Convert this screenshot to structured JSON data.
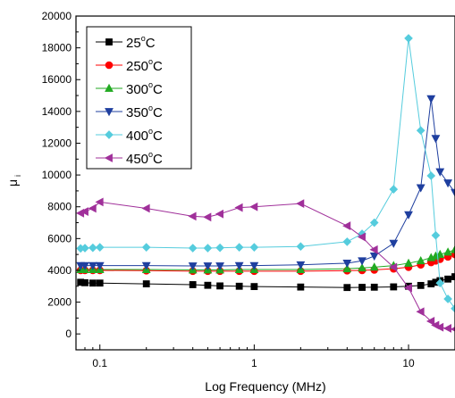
{
  "chart_data": {
    "type": "line",
    "title": "",
    "xlabel": "Log Frequency (MHz)",
    "ylabel_main": "μ",
    "ylabel_sub": "i",
    "x_scale": "log",
    "xlim": [
      0.07,
      20
    ],
    "ylim": [
      -1000,
      20000
    ],
    "x_ticks": [
      {
        "value": 0.1,
        "label": "0.1"
      },
      {
        "value": 1,
        "label": "1"
      },
      {
        "value": 10,
        "label": "10"
      }
    ],
    "y_ticks": [
      {
        "value": 0,
        "label": "0"
      },
      {
        "value": 2000,
        "label": "2000"
      },
      {
        "value": 4000,
        "label": "4000"
      },
      {
        "value": 6000,
        "label": "6000"
      },
      {
        "value": 8000,
        "label": "8000"
      },
      {
        "value": 10000,
        "label": "10000"
      },
      {
        "value": 12000,
        "label": "12000"
      },
      {
        "value": 14000,
        "label": "14000"
      },
      {
        "value": 16000,
        "label": "16000"
      },
      {
        "value": 18000,
        "label": "18000"
      },
      {
        "value": 20000,
        "label": "20000"
      }
    ],
    "grid": false,
    "legend": {
      "position": "top-left"
    },
    "series": [
      {
        "name": "25°C",
        "label_num": "25",
        "label_deg": "o",
        "label_unit": "C",
        "color": "#000000",
        "marker": "square",
        "x": [
          0.075,
          0.08,
          0.09,
          0.1,
          0.2,
          0.4,
          0.5,
          0.6,
          0.8,
          1,
          2,
          4,
          5,
          6,
          8,
          10,
          12,
          14,
          15,
          16,
          18,
          20
        ],
        "y": [
          3250,
          3220,
          3200,
          3200,
          3150,
          3100,
          3060,
          3020,
          3000,
          2980,
          2950,
          2920,
          2930,
          2940,
          2960,
          3000,
          3050,
          3150,
          3250,
          3350,
          3450,
          3600
        ]
      },
      {
        "name": "250°C",
        "label_num": "250",
        "label_deg": "o",
        "label_unit": "C",
        "color": "#ff0000",
        "marker": "circle",
        "x": [
          0.075,
          0.08,
          0.09,
          0.1,
          0.2,
          0.4,
          0.5,
          0.6,
          0.8,
          1,
          2,
          4,
          5,
          6,
          8,
          10,
          12,
          14,
          15,
          16,
          18,
          20
        ],
        "y": [
          4000,
          4000,
          4000,
          4000,
          3980,
          3950,
          3950,
          3950,
          3950,
          3950,
          3950,
          3980,
          4000,
          4030,
          4100,
          4200,
          4350,
          4500,
          4600,
          4700,
          4850,
          5000
        ]
      },
      {
        "name": "300°C",
        "label_num": "300",
        "label_deg": "o",
        "label_unit": "C",
        "color": "#22aa22",
        "marker": "triangle-up",
        "x": [
          0.075,
          0.08,
          0.09,
          0.1,
          0.2,
          0.4,
          0.5,
          0.6,
          0.8,
          1,
          2,
          4,
          5,
          6,
          8,
          10,
          12,
          14,
          15,
          16,
          18,
          20
        ],
        "y": [
          4050,
          4050,
          4050,
          4050,
          4050,
          4030,
          4030,
          4030,
          4050,
          4050,
          4050,
          4100,
          4150,
          4200,
          4300,
          4450,
          4600,
          4800,
          4900,
          5000,
          5150,
          5300
        ]
      },
      {
        "name": "350°C",
        "label_num": "350",
        "label_deg": "o",
        "label_unit": "C",
        "color": "#1f3f9f",
        "marker": "triangle-down",
        "x": [
          0.075,
          0.08,
          0.09,
          0.1,
          0.2,
          0.4,
          0.5,
          0.6,
          0.8,
          1,
          2,
          4,
          5,
          6,
          8,
          10,
          12,
          14,
          15,
          16,
          18,
          20
        ],
        "y": [
          4300,
          4300,
          4300,
          4300,
          4300,
          4280,
          4280,
          4280,
          4300,
          4300,
          4350,
          4450,
          4600,
          4900,
          5700,
          7500,
          9200,
          14800,
          12300,
          10200,
          9500,
          8900
        ]
      },
      {
        "name": "400°C",
        "label_num": "400",
        "label_deg": "o",
        "label_unit": "C",
        "color": "#55ccdd",
        "marker": "diamond",
        "x": [
          0.075,
          0.08,
          0.09,
          0.1,
          0.2,
          0.4,
          0.5,
          0.6,
          0.8,
          1,
          2,
          4,
          5,
          6,
          8,
          10,
          12,
          14,
          15,
          16,
          18,
          20
        ],
        "y": [
          5380,
          5400,
          5420,
          5450,
          5450,
          5400,
          5400,
          5420,
          5450,
          5450,
          5500,
          5800,
          6300,
          7000,
          9100,
          18600,
          12800,
          9950,
          6200,
          3200,
          2200,
          1600
        ]
      },
      {
        "name": "450°C",
        "label_num": "450",
        "label_deg": "o",
        "label_unit": "C",
        "color": "#a0309a",
        "marker": "triangle-left",
        "x": [
          0.075,
          0.08,
          0.09,
          0.1,
          0.2,
          0.4,
          0.5,
          0.6,
          0.8,
          1,
          2,
          4,
          5,
          6,
          8,
          10,
          12,
          14,
          15,
          16,
          18,
          20
        ],
        "y": [
          7600,
          7700,
          7900,
          8300,
          7900,
          7400,
          7350,
          7550,
          7950,
          8000,
          8200,
          6800,
          6100,
          5300,
          4200,
          2900,
          1400,
          800,
          550,
          420,
          350,
          300
        ]
      }
    ]
  }
}
